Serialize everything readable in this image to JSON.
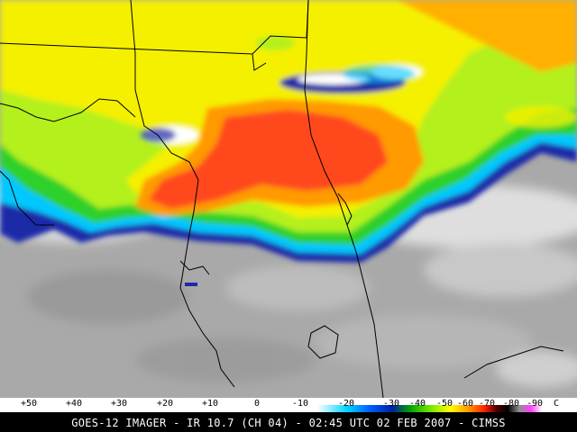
{
  "colorbar": {
    "ticks": [
      "+50",
      "+40",
      "+30",
      "+20",
      "+10",
      "0",
      "-10",
      "-20",
      "-30",
      "-40",
      "-50",
      "-60",
      "-70",
      "-80",
      "-90"
    ],
    "unit": "C",
    "stops": [
      "#ffffff",
      "#d0d0d0",
      "#a8a8a8",
      "#888888",
      "#00e0ff",
      "#0090ff",
      "#0030c0",
      "#00a000",
      "#40d000",
      "#a0ff00",
      "#ffff00",
      "#ffb000",
      "#ff5000",
      "#ff0000",
      "#600000",
      "#000000",
      "#808080",
      "#ff60ff",
      "#ffffff"
    ]
  },
  "caption": "GOES-12 IMAGER - IR 10.7 (CH 04) - 02:45 UTC 02 FEB 2007 - CIMSS",
  "palette": {
    "gray": "#a9a9a9",
    "light_gray": "#d4d4d4",
    "green": "#2fd02a",
    "yellow_green": "#b4f01a",
    "yellow": "#f4f000",
    "orange": "#ff9a00",
    "red": "#ff4a1a",
    "blue": "#1a2aa8",
    "cyan": "#00c8ff",
    "outline": "#000000"
  }
}
